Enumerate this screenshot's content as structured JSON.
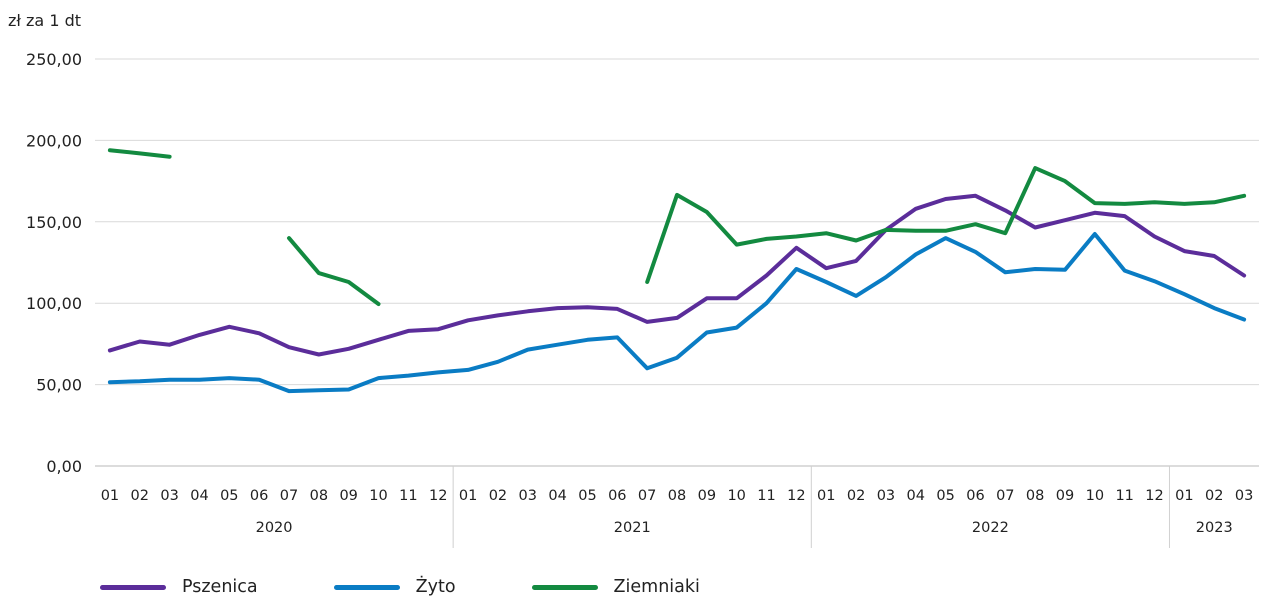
{
  "chart_data": {
    "type": "line",
    "unit_label": "zł za 1 dt",
    "ylim": [
      0,
      250
    ],
    "yticks": [
      "0,00",
      "50,00",
      "100,00",
      "150,00",
      "200,00",
      "250,00"
    ],
    "ytick_values": [
      0,
      50,
      100,
      150,
      200,
      250
    ],
    "grid": true,
    "legend_position": "bottom",
    "x": [
      "01",
      "02",
      "03",
      "04",
      "05",
      "06",
      "07",
      "08",
      "09",
      "10",
      "11",
      "12",
      "01",
      "02",
      "03",
      "04",
      "05",
      "06",
      "07",
      "08",
      "09",
      "10",
      "11",
      "12",
      "01",
      "02",
      "03",
      "04",
      "05",
      "06",
      "07",
      "08",
      "09",
      "10",
      "11",
      "12",
      "01",
      "02",
      "03"
    ],
    "year_groups": [
      {
        "label": "2020",
        "count": 12
      },
      {
        "label": "2021",
        "count": 12
      },
      {
        "label": "2022",
        "count": 12
      },
      {
        "label": "2023",
        "count": 3
      }
    ],
    "series": [
      {
        "name": "Pszenica",
        "color": "#5b2d9a",
        "values": [
          71,
          76.5,
          74.5,
          80.5,
          85.5,
          81.5,
          73,
          68.5,
          72,
          77.5,
          83,
          84,
          89.5,
          92.5,
          95,
          97,
          97.5,
          96.5,
          88.5,
          91,
          103,
          103,
          117,
          134,
          121.5,
          126,
          145,
          158,
          164,
          166,
          157,
          146.5,
          151,
          155.5,
          153.5,
          141,
          132,
          129,
          117
        ]
      },
      {
        "name": "Żyto",
        "color": "#0a7cc4",
        "values": [
          51.5,
          52,
          53,
          53,
          54,
          53,
          46,
          46.5,
          47,
          54,
          55.5,
          57.5,
          59,
          64,
          71.5,
          74.5,
          77.5,
          79,
          60,
          66.5,
          82,
          85,
          100,
          121,
          113,
          104.5,
          116,
          130,
          140,
          131.5,
          119,
          121,
          120.5,
          142.5,
          120,
          113.5,
          105.5,
          97,
          90
        ]
      },
      {
        "name": "Ziemniaki",
        "color": "#138a40",
        "values": [
          194,
          192,
          190,
          null,
          null,
          null,
          140,
          118.5,
          113,
          99.5,
          null,
          null,
          null,
          null,
          null,
          null,
          null,
          null,
          113,
          166.5,
          156,
          136,
          139.5,
          141,
          143,
          138.5,
          145,
          144.5,
          144.5,
          148.5,
          143,
          183,
          175,
          161.5,
          161,
          162,
          161,
          162,
          166
        ]
      }
    ]
  }
}
